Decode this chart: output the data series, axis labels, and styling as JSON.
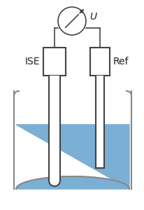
{
  "background_color": "#ffffff",
  "liquid_color": "#7bafd4",
  "beaker_line_color": "#888888",
  "electrode_line_color": "#444444",
  "wire_line_color": "#444444",
  "text_color": "#222222",
  "label_ise": "ISE",
  "label_ref": "Ref",
  "label_u": "U",
  "font_size": 10,
  "lw_beaker": 1.5,
  "lw_electrode": 1.5,
  "lw_wire": 1.2
}
